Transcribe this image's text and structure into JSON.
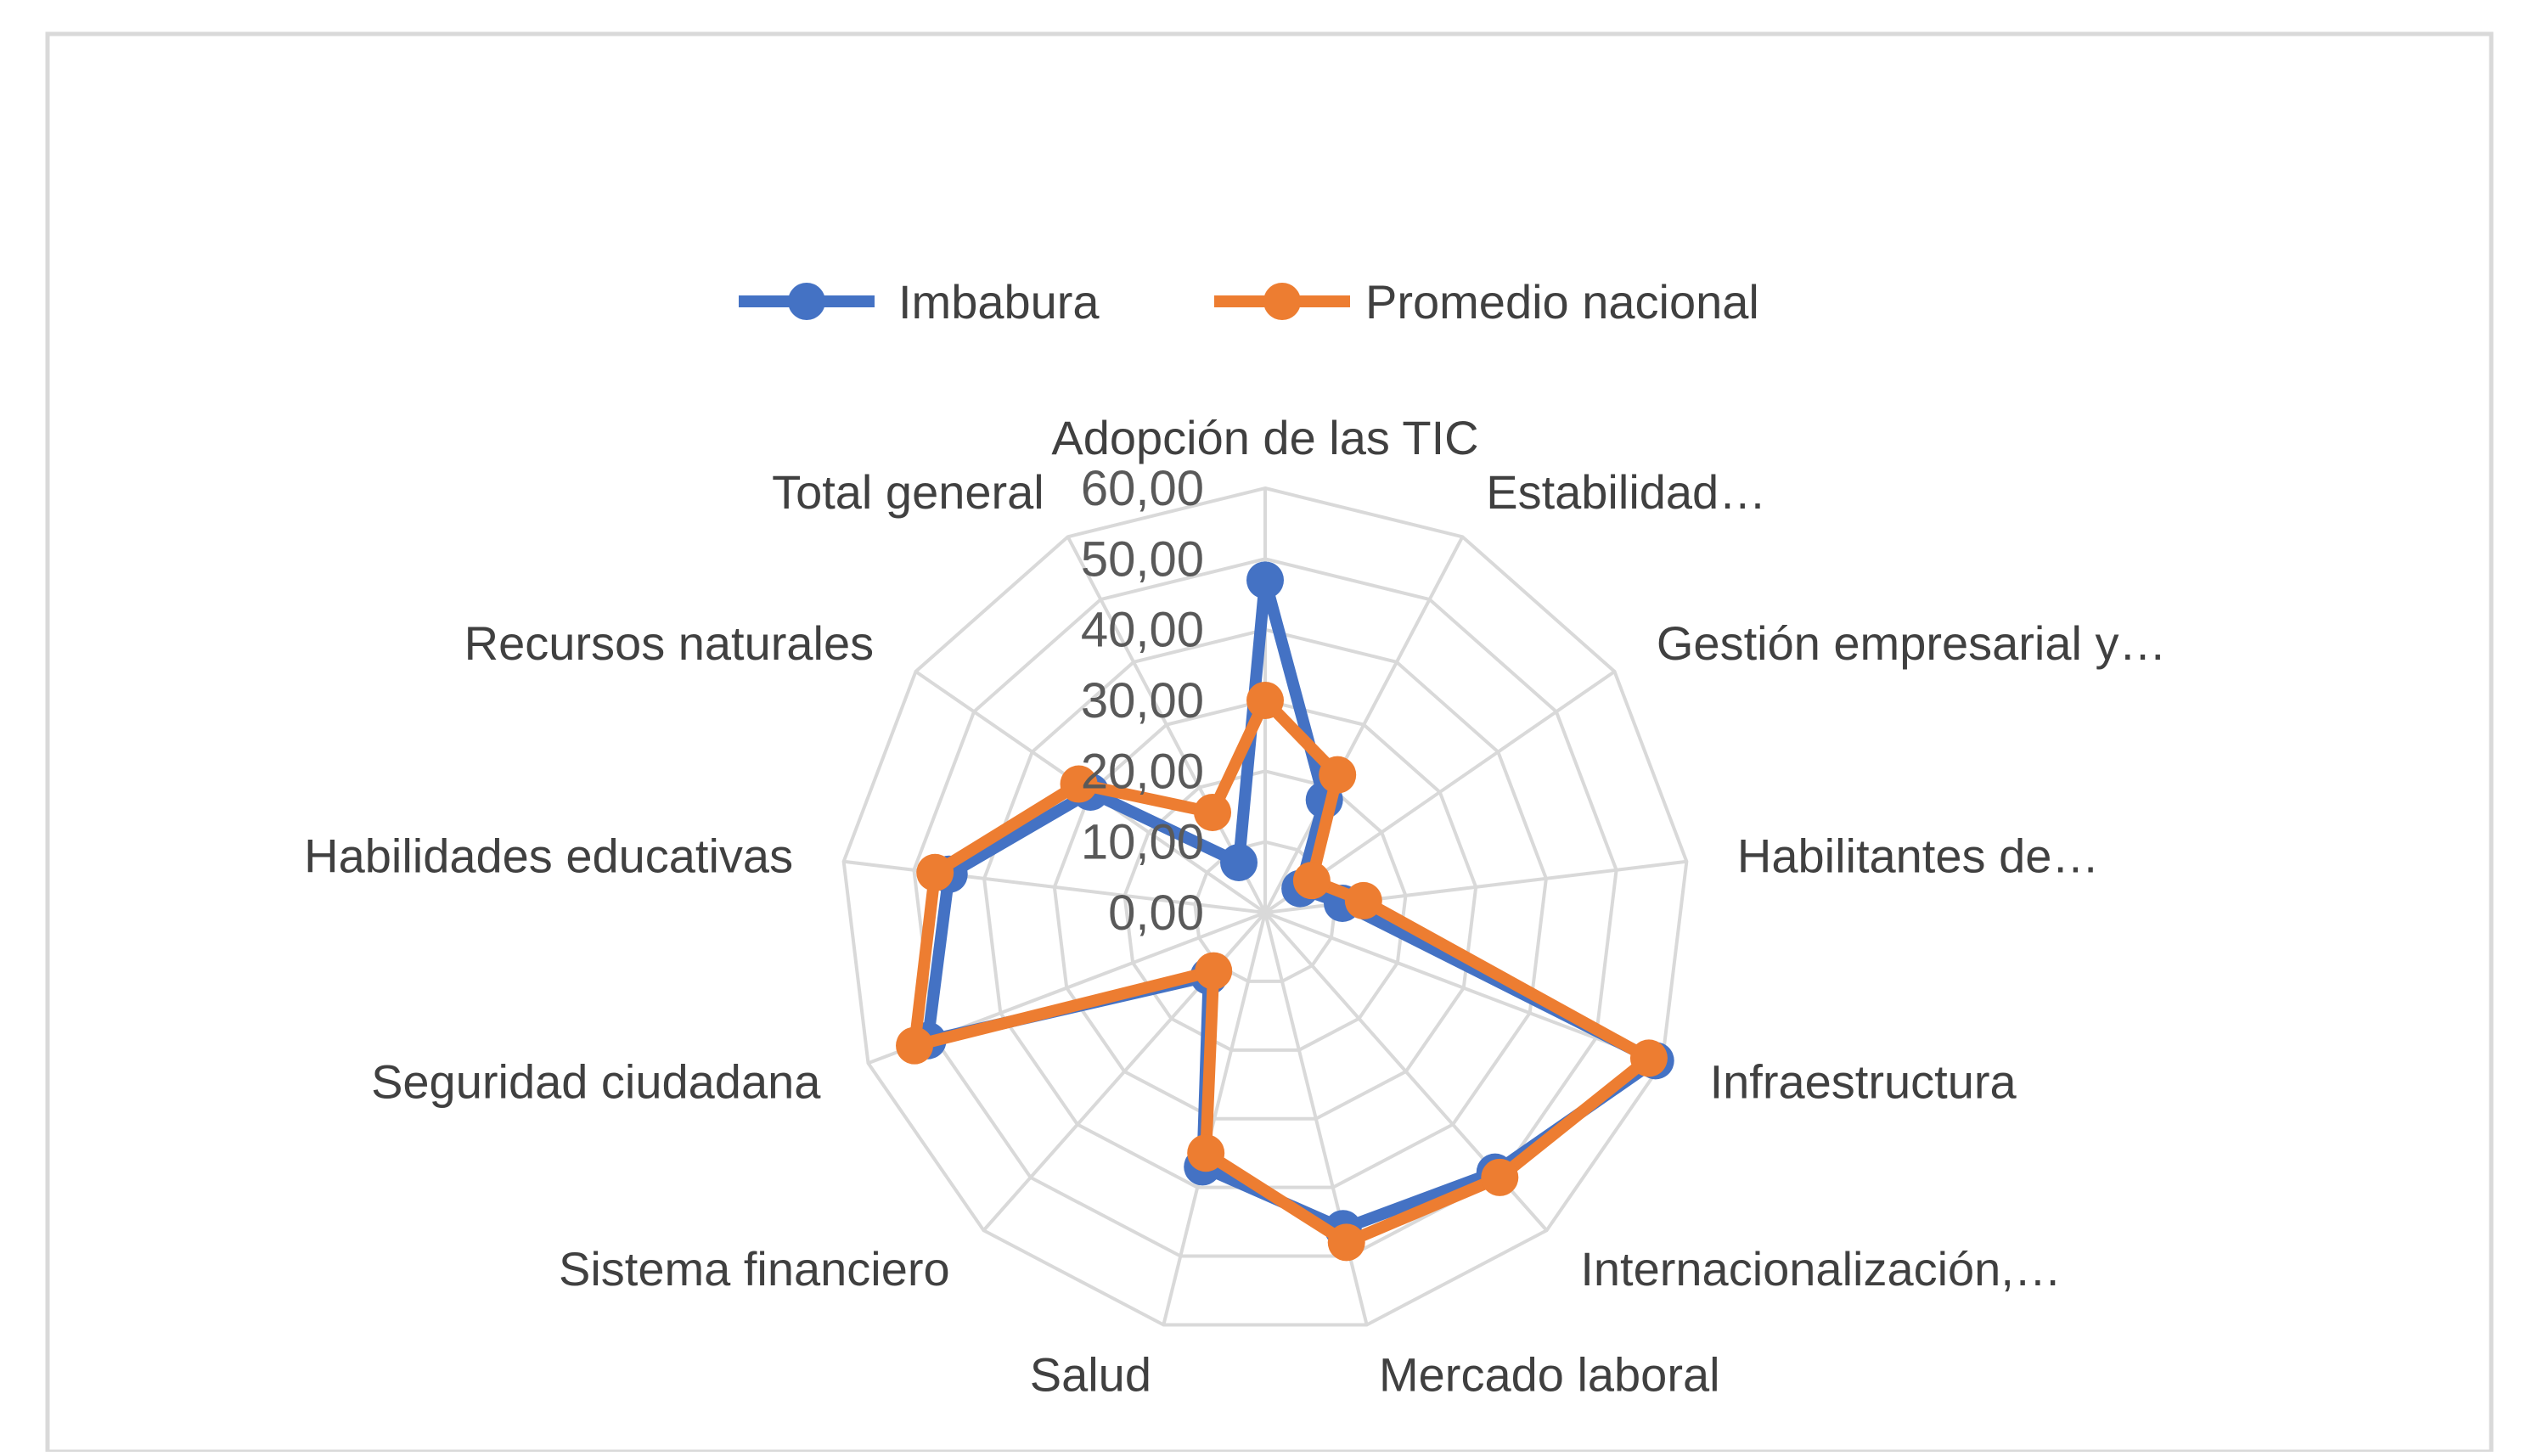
{
  "colors": {
    "background": "#ffffff",
    "border": "#d9d9d9",
    "grid": "#d9d9d9",
    "text": "#404040",
    "tick_text": "#595959"
  },
  "chart_data": {
    "type": "radar",
    "title": "",
    "categories": [
      "Adopción de las TIC",
      "Estabilidad…",
      "Gestión empresarial y…",
      "Habilitantes de…",
      "Infraestructura",
      "Internacionalización,…",
      "Mercado laboral",
      "Salud",
      "Sistema financiero",
      "Seguridad ciudadana",
      "Habilidades educativas",
      "Recursos naturales",
      "Total general"
    ],
    "tick_labels": [
      "0,00",
      "10,00",
      "20,00",
      "30,00",
      "40,00",
      "50,00",
      "60,00"
    ],
    "rmax": 60,
    "grid": true,
    "legend_position": "top",
    "series": [
      {
        "name": "Imbabura",
        "color": "#4472c4",
        "values": [
          47,
          18,
          6,
          11,
          59,
          49,
          46,
          37,
          12,
          51,
          45,
          30,
          8
        ]
      },
      {
        "name": "Promedio nacional",
        "color": "#ed7d31",
        "values": [
          30,
          22,
          8,
          14,
          58,
          50,
          48,
          35,
          11,
          53,
          47,
          32,
          16
        ]
      }
    ]
  }
}
